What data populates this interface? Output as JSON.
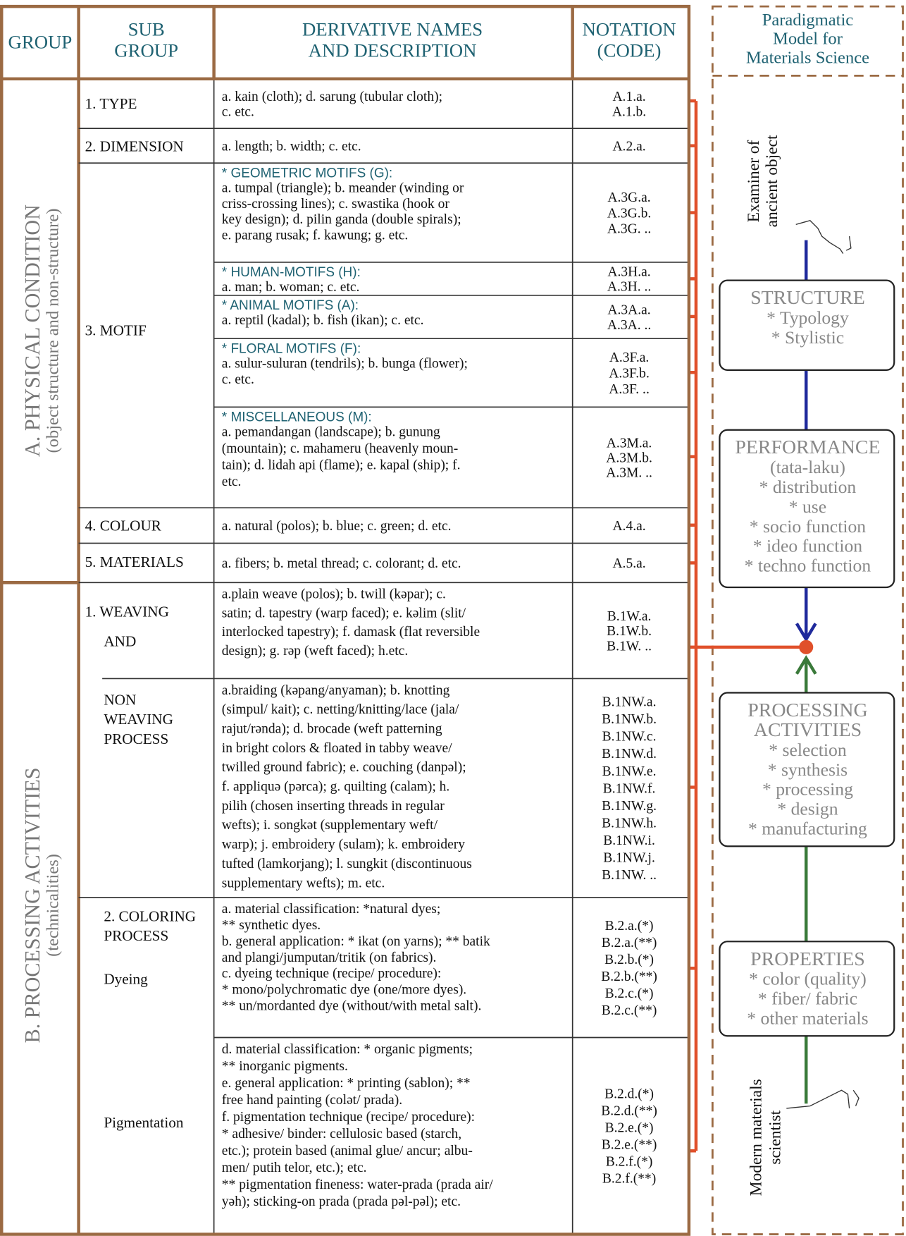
{
  "header": {
    "group": [
      "GROUP"
    ],
    "subgroup": [
      "SUB",
      "GROUP"
    ],
    "derivative": [
      "DERIVATIVE  NAMES",
      "AND DESCRIPTION"
    ],
    "notation": [
      "NOTATION",
      "(CODE)"
    ]
  },
  "groups": [
    {
      "label": "A. PHYSICAL CONDITION",
      "sublabel": "(object structure and non-structure)"
    },
    {
      "label": "B. PROCESSING ACTIVITIES",
      "sublabel": "(technicalities)"
    }
  ],
  "rows": [
    {
      "subgroup": [
        "1. TYPE"
      ],
      "description": [
        "a. kain (cloth); d. sarung (tubular cloth);",
        "c. etc."
      ],
      "codes": [
        "A.1.a.",
        "A.1.b."
      ]
    },
    {
      "subgroup": [
        "2. DIMENSION"
      ],
      "description": [
        "a. length; b. width; c. etc."
      ],
      "codes": [
        "A.2.a."
      ]
    },
    {
      "subgroup": [
        "3. MOTIF"
      ],
      "heading": "* GEOMETRIC MOTIFS (G):",
      "description": [
        "a. tumpal (triangle); b. meander (winding or",
        "criss-crossing lines); c. swastika (hook or",
        "key design); d. pilin ganda (double spirals);",
        "e. parang rusak; f. kawung; g. etc."
      ],
      "codes": [
        "A.3G.a.",
        "A.3G.b.",
        "A.3G. .."
      ]
    },
    {
      "heading": "* HUMAN-MOTIFS (H):",
      "description": [
        "a. man; b. woman; c. etc."
      ],
      "codes": [
        "A.3H.a.",
        "A.3H. .."
      ]
    },
    {
      "heading": "* ANIMAL MOTIFS (A):",
      "description": [
        "a. reptil (kadal); b. fish (ikan); c. etc."
      ],
      "codes": [
        "A.3A.a.",
        "A.3A. .."
      ]
    },
    {
      "heading": "* FLORAL MOTIFS (F):",
      "description": [
        "a. sulur-suluran (tendrils); b. bunga (flower);",
        "c. etc."
      ],
      "codes": [
        "A.3F.a.",
        "A.3F.b.",
        "A.3F. .."
      ]
    },
    {
      "heading": "* MISCELLANEOUS (M):",
      "description": [
        "a. pemandangan (landscape); b. gunung",
        "(mountain); c. mahameru (heavenly moun-",
        "tain); d. lidah api (flame); e. kapal (ship); f.",
        "etc."
      ],
      "codes": [
        "A.3M.a.",
        "A.3M.b.",
        "A.3M. .."
      ]
    },
    {
      "subgroup": [
        "4. COLOUR"
      ],
      "description": [
        "a. natural (polos); b. blue; c. green; d. etc."
      ],
      "codes": [
        "A.4.a."
      ]
    },
    {
      "subgroup": [
        "5. MATERIALS"
      ],
      "description": [
        "a. fibers; b. metal thread; c. colorant; d. etc."
      ],
      "codes": [
        "A.5.a."
      ]
    },
    {
      "subgroup": [
        "1. WEAVING",
        "AND"
      ],
      "description": [
        "a.plain weave (polos); b. twill (kəpar); c.",
        "satin; d. tapestry (warp faced); e. kəlim (slit/",
        "interlocked tapestry); f. damask (flat reversible",
        "design); g. rəp (weft faced); h.etc."
      ],
      "codes": [
        "B.1W.a.",
        "B.1W.b.",
        "B.1W. .."
      ]
    },
    {
      "subgroup": [
        "NON",
        "WEAVING",
        "PROCESS"
      ],
      "description": [
        "a.braiding (kəpang/anyaman); b. knotting",
        "(simpul/ kait); c. netting/knitting/lace (jala/",
        "rajut/rənda); d. brocade (weft patterning",
        "in bright colors & floated in tabby weave/",
        "twilled ground fabric); e. couching (danpəl);",
        "f. appliquə (pərca); g. quilting (calam); h.",
        "pilih (chosen inserting threads in regular",
        "wefts); i. songkət (supplementary weft/",
        "warp); j. embroidery (sulam); k. embroidery",
        "tufted (lamkorjang); l. sungkit (discontinuous",
        "supplementary wefts); m. etc."
      ],
      "codes": [
        "B.1NW.a.",
        "B.1NW.b.",
        "B.1NW.c.",
        "B.1NW.d.",
        "B.1NW.e.",
        "B.1NW.f.",
        "B.1NW.g.",
        "B.1NW.h.",
        "B.1NW.i.",
        "B.1NW.j.",
        "B.1NW. .."
      ]
    },
    {
      "subgroup": [
        "2. COLORING",
        "PROCESS",
        "Dyeing"
      ],
      "description": [
        "a. material classification: *natural dyes;",
        "** synthetic dyes.",
        "b. general application: * ikat (on yarns); ** batik",
        "and plangi/jumputan/tritik (on fabrics).",
        "c. dyeing technique (recipe/ procedure):",
        "* mono/polychromatic dye (one/more dyes).",
        "** un/mordanted dye (without/with metal salt)."
      ],
      "codes": [
        "B.2.a.(*)",
        "B.2.a.(**)",
        "B.2.b.(*)",
        "B.2.b.(**)",
        "B.2.c.(*)",
        "B.2.c.(**)"
      ]
    },
    {
      "subgroup": [
        "Pigmentation"
      ],
      "description": [
        "d. material classification: * organic pigments;",
        "** inorganic pigments.",
        "e. general application: * printing (sablon); **",
        "free hand painting (colət/ prada).",
        "f. pigmentation technique (recipe/ procedure):",
        "* adhesive/ binder: cellulosic based (starch,",
        "etc.); protein based (animal glue/ ancur; albu-",
        "men/ putih telor, etc.); etc.",
        "** pigmentation fineness: water-prada (prada air/",
        "yəh); sticking-on prada (prada pəl-pəl); etc."
      ],
      "codes": [
        "B.2.d.(*)",
        "B.2.d.(**)",
        "B.2.e.(*)",
        "B.2.e.(**)",
        "B.2.f.(*)",
        "B.2.f.(**)"
      ]
    }
  ],
  "model": {
    "title": [
      "Paradigmatic",
      "Model for",
      "Materials Science"
    ],
    "examiner": [
      "Examiner of",
      "ancient object"
    ],
    "boxes": [
      {
        "title": [
          "STRUCTURE"
        ],
        "items": [
          "* Typology",
          "* Stylistic"
        ]
      },
      {
        "title": [
          "PERFORMANCE"
        ],
        "items": [
          "(tata-laku)",
          "* distribution",
          "* use",
          "* socio function",
          "* ideo function",
          "* techno function"
        ]
      },
      {
        "title": [
          "PROCESSING",
          "ACTIVITIES"
        ],
        "items": [
          "* selection",
          "* synthesis",
          "* processing",
          "* design",
          "* manufacturing"
        ]
      },
      {
        "title": [
          "PROPERTIES"
        ],
        "items": [
          "* color (quality)",
          "* fiber/ fabric",
          "* other materials"
        ]
      }
    ],
    "scientist": [
      "Modern materials",
      "scientist"
    ]
  }
}
